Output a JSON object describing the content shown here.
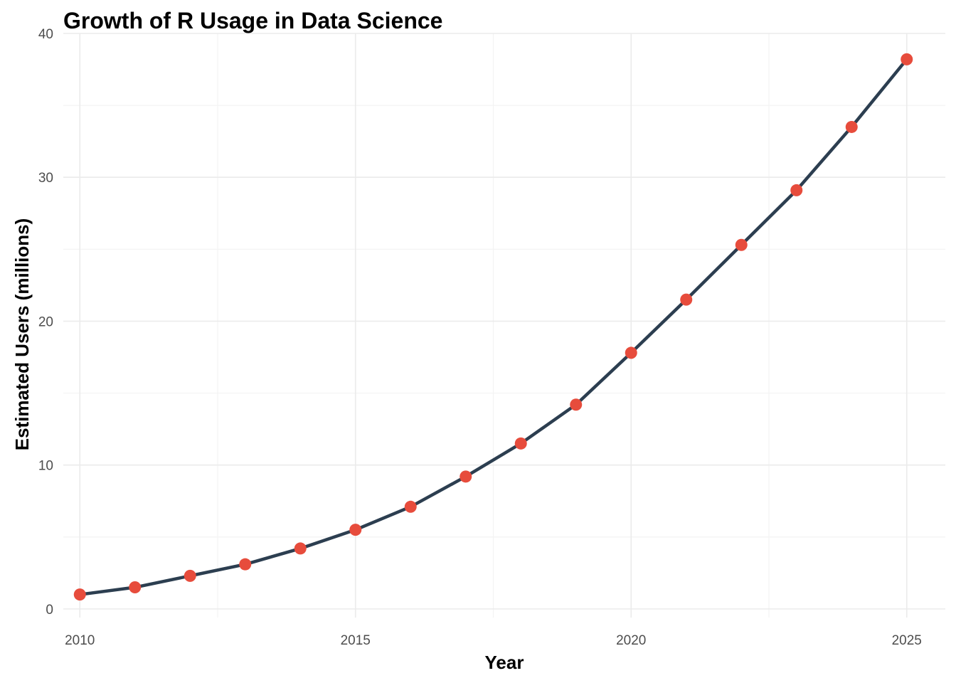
{
  "chart_data": {
    "type": "line",
    "title": "Growth of R Usage in Data Science",
    "xlabel": "Year",
    "ylabel": "Estimated Users (millions)",
    "xlim": [
      2009.7,
      2025.7
    ],
    "ylim": [
      -0.6,
      40
    ],
    "x_ticks": [
      2010,
      2015,
      2020,
      2025
    ],
    "x_minor_ticks": [
      2012.5,
      2017.5,
      2022.5
    ],
    "y_ticks": [
      0,
      10,
      20,
      30,
      40
    ],
    "y_minor_ticks": [
      5,
      15,
      25,
      35
    ],
    "grid": true,
    "legend": "none",
    "series": [
      {
        "x": [
          2010,
          2011,
          2012,
          2013,
          2014,
          2015,
          2016,
          2017,
          2018,
          2019,
          2020,
          2021,
          2022,
          2023,
          2024,
          2025
        ],
        "y": [
          1.0,
          1.5,
          2.3,
          3.1,
          4.2,
          5.5,
          7.1,
          9.2,
          11.5,
          14.2,
          17.8,
          21.5,
          25.3,
          29.1,
          33.5,
          38.2
        ],
        "line_color": "#2c3e50",
        "point_color": "#e74c3c"
      }
    ]
  }
}
